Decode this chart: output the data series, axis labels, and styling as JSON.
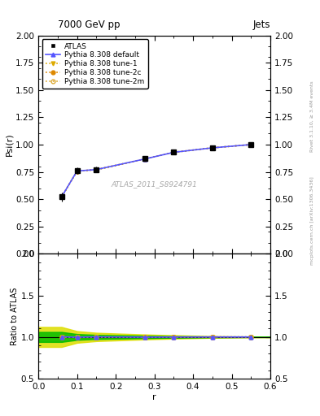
{
  "title_left": "7000 GeV pp",
  "title_right": "Jets",
  "right_label": "mcplots.cern.ch [arXiv:1306.3436]",
  "right_label2": "Rivet 3.1.10, ≥ 3.4M events",
  "watermark": "ATLAS_2011_S8924791",
  "ylabel_main": "Psi(r)",
  "ylabel_ratio": "Ratio to ATLAS",
  "xlabel": "r",
  "xlim": [
    0,
    0.6
  ],
  "ylim_main": [
    0,
    2
  ],
  "ylim_ratio": [
    0.5,
    2
  ],
  "x_data": [
    0.06,
    0.1,
    0.15,
    0.275,
    0.35,
    0.45,
    0.55
  ],
  "atlas_y": [
    0.52,
    0.76,
    0.77,
    0.87,
    0.93,
    0.97,
    1.0
  ],
  "atlas_yerr": [
    0.04,
    0.03,
    0.025,
    0.02,
    0.015,
    0.01,
    0.008
  ],
  "pythia_default_y": [
    0.521,
    0.758,
    0.771,
    0.868,
    0.929,
    0.97,
    1.0
  ],
  "pythia_tune1_y": [
    0.52,
    0.757,
    0.77,
    0.868,
    0.929,
    0.97,
    1.0
  ],
  "pythia_tune2c_y": [
    0.52,
    0.757,
    0.77,
    0.868,
    0.929,
    0.97,
    1.0
  ],
  "pythia_tune2m_y": [
    0.52,
    0.757,
    0.77,
    0.868,
    0.929,
    0.97,
    1.0
  ],
  "color_atlas": "black",
  "color_default": "#5555ff",
  "color_tune1": "#ddaa00",
  "color_tune2c": "#dd8800",
  "color_tune2m": "#ddaa33",
  "band_yellow": "#dddd00",
  "band_green": "#00bb00",
  "ratio_band_yellow_lo_x": [
    0.0,
    0.06,
    0.1,
    0.15,
    0.275,
    0.35,
    0.45,
    0.55,
    0.6
  ],
  "ratio_band_yellow_lo_y": [
    0.88,
    0.88,
    0.93,
    0.95,
    0.97,
    0.98,
    0.99,
    0.995,
    0.995
  ],
  "ratio_band_yellow_hi_y": [
    1.12,
    1.12,
    1.07,
    1.05,
    1.03,
    1.02,
    1.01,
    1.005,
    1.005
  ],
  "ratio_band_green_lo_x": [
    0.0,
    0.06,
    0.1,
    0.15,
    0.275,
    0.35,
    0.45,
    0.55,
    0.6
  ],
  "ratio_band_green_lo_y": [
    0.94,
    0.94,
    0.965,
    0.975,
    0.985,
    0.99,
    0.995,
    0.998,
    0.998
  ],
  "ratio_band_green_hi_y": [
    1.06,
    1.06,
    1.035,
    1.025,
    1.015,
    1.01,
    1.005,
    1.002,
    1.002
  ]
}
